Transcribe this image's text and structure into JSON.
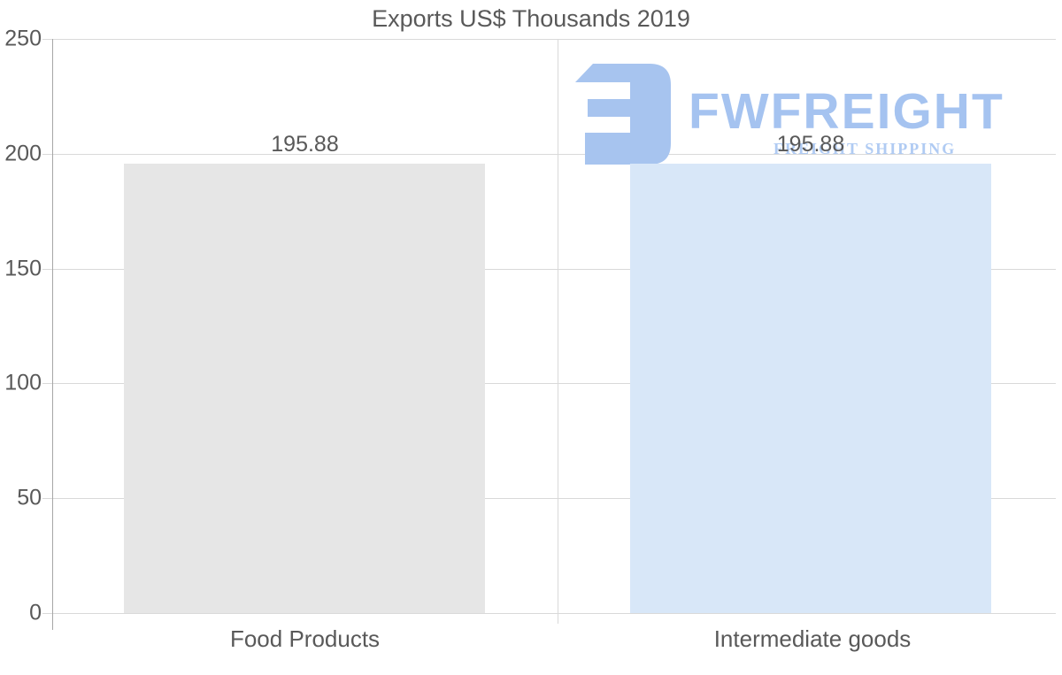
{
  "chart_data": {
    "type": "bar",
    "title": "Exports US$ Thousands 2019",
    "categories": [
      "Food Products",
      "Intermediate goods"
    ],
    "values": [
      195.88,
      195.88
    ],
    "value_labels": [
      "195.88",
      "195.88"
    ],
    "bar_colors": [
      "#e6e6e6",
      "#d8e7f8"
    ],
    "yticks": [
      0,
      50,
      100,
      150,
      200,
      250
    ],
    "ylim": [
      0,
      250
    ],
    "xlabel": "",
    "ylabel": "",
    "grid": "horizontal gridlines on, one vertical category separator",
    "legend": "none"
  },
  "watermark": {
    "wordmark": "FWFREIGHT",
    "subtitle": "FREIGHT SHIPPING",
    "icon": "fwfreight-logo-icon",
    "icon_color": "#a7c4ef",
    "wordmark_color": "#a5c3f0",
    "subtitle_color": "#b0cbf3"
  },
  "colors": {
    "text": "#595959",
    "gridline": "#d9d9d9",
    "axis": "#a6a6a6",
    "background": "#ffffff"
  }
}
